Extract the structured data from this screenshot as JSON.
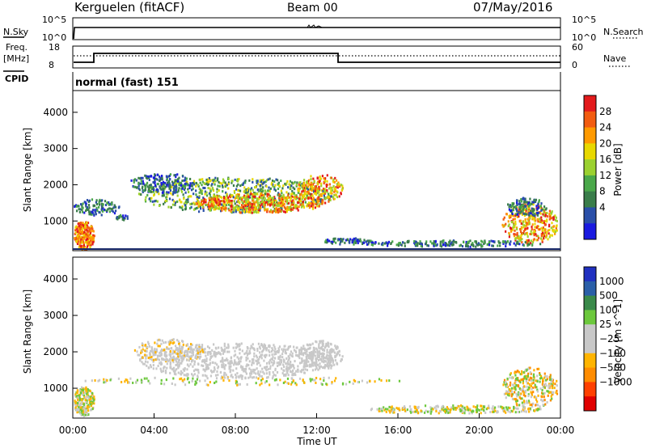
{
  "header": {
    "station": "Kerguelen (fitACF)",
    "beam": "Beam 00",
    "date": "07/May/2016"
  },
  "top_panels": {
    "nsky_label": "N.Sky",
    "nsky_ticks": [
      "10^5",
      "10^0"
    ],
    "nsearch_label": "N.Search",
    "nsearch_ticks": [
      "10^5",
      "10^0"
    ],
    "freq_label": "Freq.",
    "freq_unit": "[MHz]",
    "freq_ticks": [
      "18",
      "8"
    ],
    "nave_label": "Nave",
    "nave_ticks": [
      "60",
      "0"
    ],
    "cpid_label": "CPID",
    "cpid_value": "normal (fast) 151"
  },
  "power_panel": {
    "ylabel": "Slant Range [km]",
    "yticks": [
      "4000",
      "3000",
      "2000",
      "1000"
    ],
    "colorbar_label": "Power [dB]",
    "colorbar_ticks": [
      "28",
      "24",
      "20",
      "16",
      "12",
      "8",
      "4"
    ],
    "colorbar_colors": [
      "#e31a1c",
      "#f25c10",
      "#ff9a00",
      "#e8d800",
      "#9bd130",
      "#4aa84a",
      "#3a7d4a",
      "#2a4fa8",
      "#1a1ae0"
    ]
  },
  "velocity_panel": {
    "ylabel": "Slant Range [km]",
    "yticks": [
      "4000",
      "3000",
      "2000",
      "1000"
    ],
    "colorbar_label": "Velocity [m s^-1]",
    "colorbar_ticks": [
      "1000",
      "500",
      "100",
      "25",
      "−25",
      "−100",
      "−500",
      "−1000"
    ],
    "colorbar_colors": [
      "#2030c0",
      "#2a5fa8",
      "#3a8a4a",
      "#6cc83c",
      "#c8c8c8",
      "#c8c8c8",
      "#ffb400",
      "#ff8c00",
      "#ff4000",
      "#e00000"
    ]
  },
  "x_axis": {
    "ticks": [
      "00:00",
      "04:00",
      "08:00",
      "12:00",
      "16:00",
      "20:00",
      "00:00"
    ],
    "label": "Time UT"
  }
}
